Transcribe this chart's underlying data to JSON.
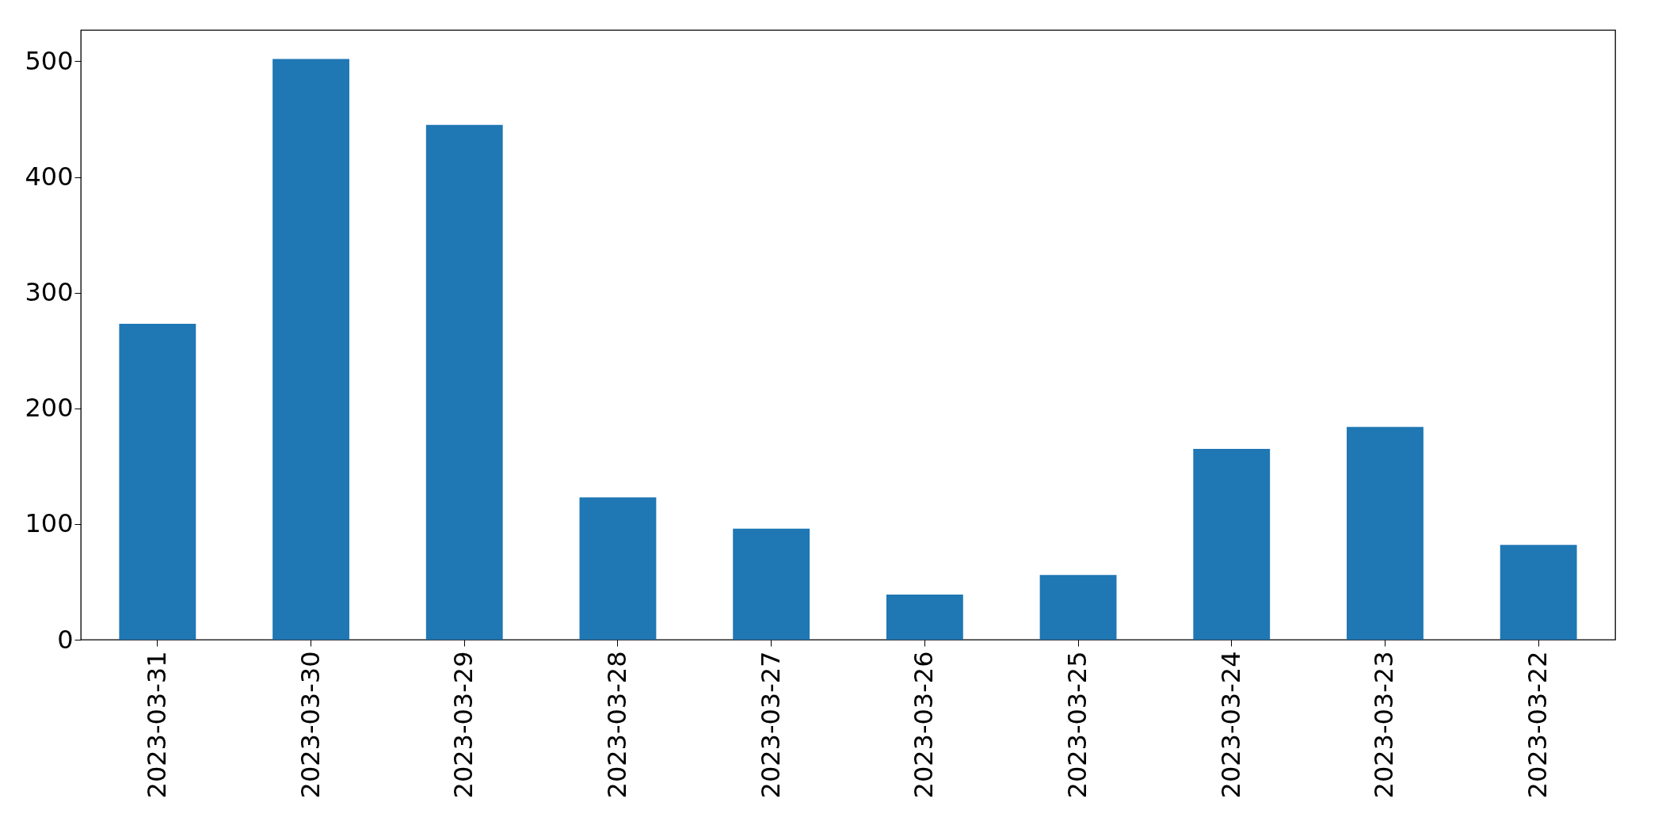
{
  "chart_data": {
    "type": "bar",
    "categories": [
      "2023-03-31",
      "2023-03-30",
      "2023-03-29",
      "2023-03-28",
      "2023-03-27",
      "2023-03-26",
      "2023-03-25",
      "2023-03-24",
      "2023-03-23",
      "2023-03-22"
    ],
    "series": [
      {
        "color": "#1f77b4",
        "values": [
          273,
          502,
          445,
          123,
          96,
          39,
          56,
          165,
          184,
          82
        ]
      }
    ],
    "ylim": [
      0,
      527
    ],
    "yticks": [
      0,
      100,
      200,
      300,
      400,
      500
    ],
    "grid": false
  }
}
